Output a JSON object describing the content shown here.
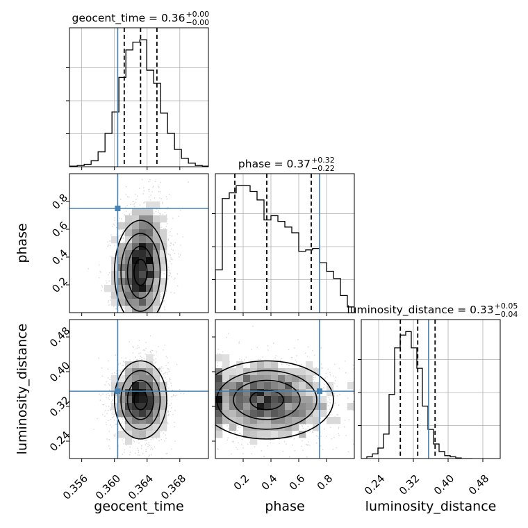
{
  "chart_data": {
    "type": "corner",
    "parameters": [
      {
        "key": "geocent_time",
        "label": "geocent_time",
        "truth": 0.3604,
        "range": [
          0.3545,
          0.3715
        ],
        "ticks": [
          "0.356",
          "0.360",
          "0.364",
          "0.368"
        ],
        "tick_values": [
          0.356,
          0.36,
          0.364,
          0.368
        ],
        "quantiles": [
          0.3612,
          0.3632,
          0.3652
        ],
        "title_main": "geocent_time = 0.36",
        "title_sup": "+0.00",
        "title_sub": "−0.00",
        "hist_edges_start": 0.3546,
        "hist_bin_width": 0.00085,
        "hist_counts": [
          1,
          2,
          4,
          10,
          25,
          56,
          92,
          150,
          196,
          209,
          213,
          162,
          140,
          90,
          56,
          29,
          14,
          6,
          2,
          1
        ]
      },
      {
        "key": "phase",
        "label": "phase",
        "truth": 0.75,
        "range": [
          0.0,
          1.0
        ],
        "ticks": [
          "0.2",
          "0.4",
          "0.6",
          "0.8"
        ],
        "tick_values": [
          0.2,
          0.4,
          0.6,
          0.8
        ],
        "quantiles": [
          0.14,
          0.37,
          0.69
        ],
        "title_main": "phase = 0.37",
        "title_sup": "+0.32",
        "title_sub": "−0.22",
        "hist_edges_start": 0.0,
        "hist_bin_width": 0.05,
        "hist_counts": [
          60,
          160,
          168,
          178,
          178,
          170,
          158,
          130,
          136,
          128,
          120,
          112,
          86,
          88,
          90,
          70,
          58,
          48,
          24,
          8
        ]
      },
      {
        "key": "luminosity_distance",
        "label": "luminosity_distance",
        "truth": 0.355,
        "range": [
          0.2,
          0.52
        ],
        "ticks": [
          "0.24",
          "0.32",
          "0.40",
          "0.48"
        ],
        "tick_values": [
          0.24,
          0.32,
          0.4,
          0.48
        ],
        "quantiles": [
          0.29,
          0.33,
          0.37
        ],
        "title_main": "luminosity_distance = 0.33",
        "title_sup": "+0.05",
        "title_sub": "−0.04",
        "hist_edges_start": 0.2,
        "hist_bin_width": 0.0128,
        "hist_counts": [
          0,
          3,
          8,
          18,
          42,
          110,
          190,
          212,
          218,
          190,
          155,
          90,
          50,
          25,
          12,
          5,
          3,
          1,
          0,
          0
        ]
      }
    ],
    "joint": [
      {
        "x": "geocent_time",
        "y": "phase",
        "mean": [
          0.3632,
          0.35
        ],
        "sd": [
          0.0016,
          0.22
        ],
        "corr": 0.15,
        "skew_y": true
      },
      {
        "x": "geocent_time",
        "y": "luminosity_distance",
        "mean": [
          0.3632,
          0.335
        ],
        "sd": [
          0.0016,
          0.045
        ],
        "corr": 0.0
      },
      {
        "x": "phase",
        "y": "luminosity_distance",
        "mean": [
          0.37,
          0.335
        ],
        "sd": [
          0.24,
          0.045
        ],
        "corr": -0.05
      }
    ],
    "truth_color": "#4682b4",
    "grid": true,
    "quantile_levels": [
      0.16,
      0.5,
      0.84
    ]
  }
}
